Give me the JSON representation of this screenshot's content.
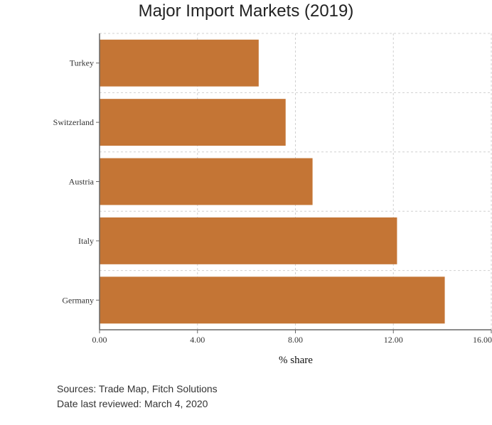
{
  "chart_data": {
    "type": "bar",
    "orientation": "horizontal",
    "title": "Major Import Markets (2019)",
    "xlabel": "% share",
    "ylabel": "",
    "categories": [
      "Turkey",
      "Switzerland",
      "Austria",
      "Italy",
      "Germany"
    ],
    "values": [
      6.5,
      7.6,
      8.7,
      12.15,
      14.1
    ],
    "xlim": [
      0,
      16
    ],
    "xticks": [
      "0.00",
      "4.00",
      "8.00",
      "12.00",
      "16.00"
    ],
    "grid": true,
    "bar_color": "#c47535"
  },
  "footer": {
    "sources": "Sources: Trade Map, Fitch Solutions",
    "reviewed": "Date last reviewed: March 4, 2020"
  }
}
